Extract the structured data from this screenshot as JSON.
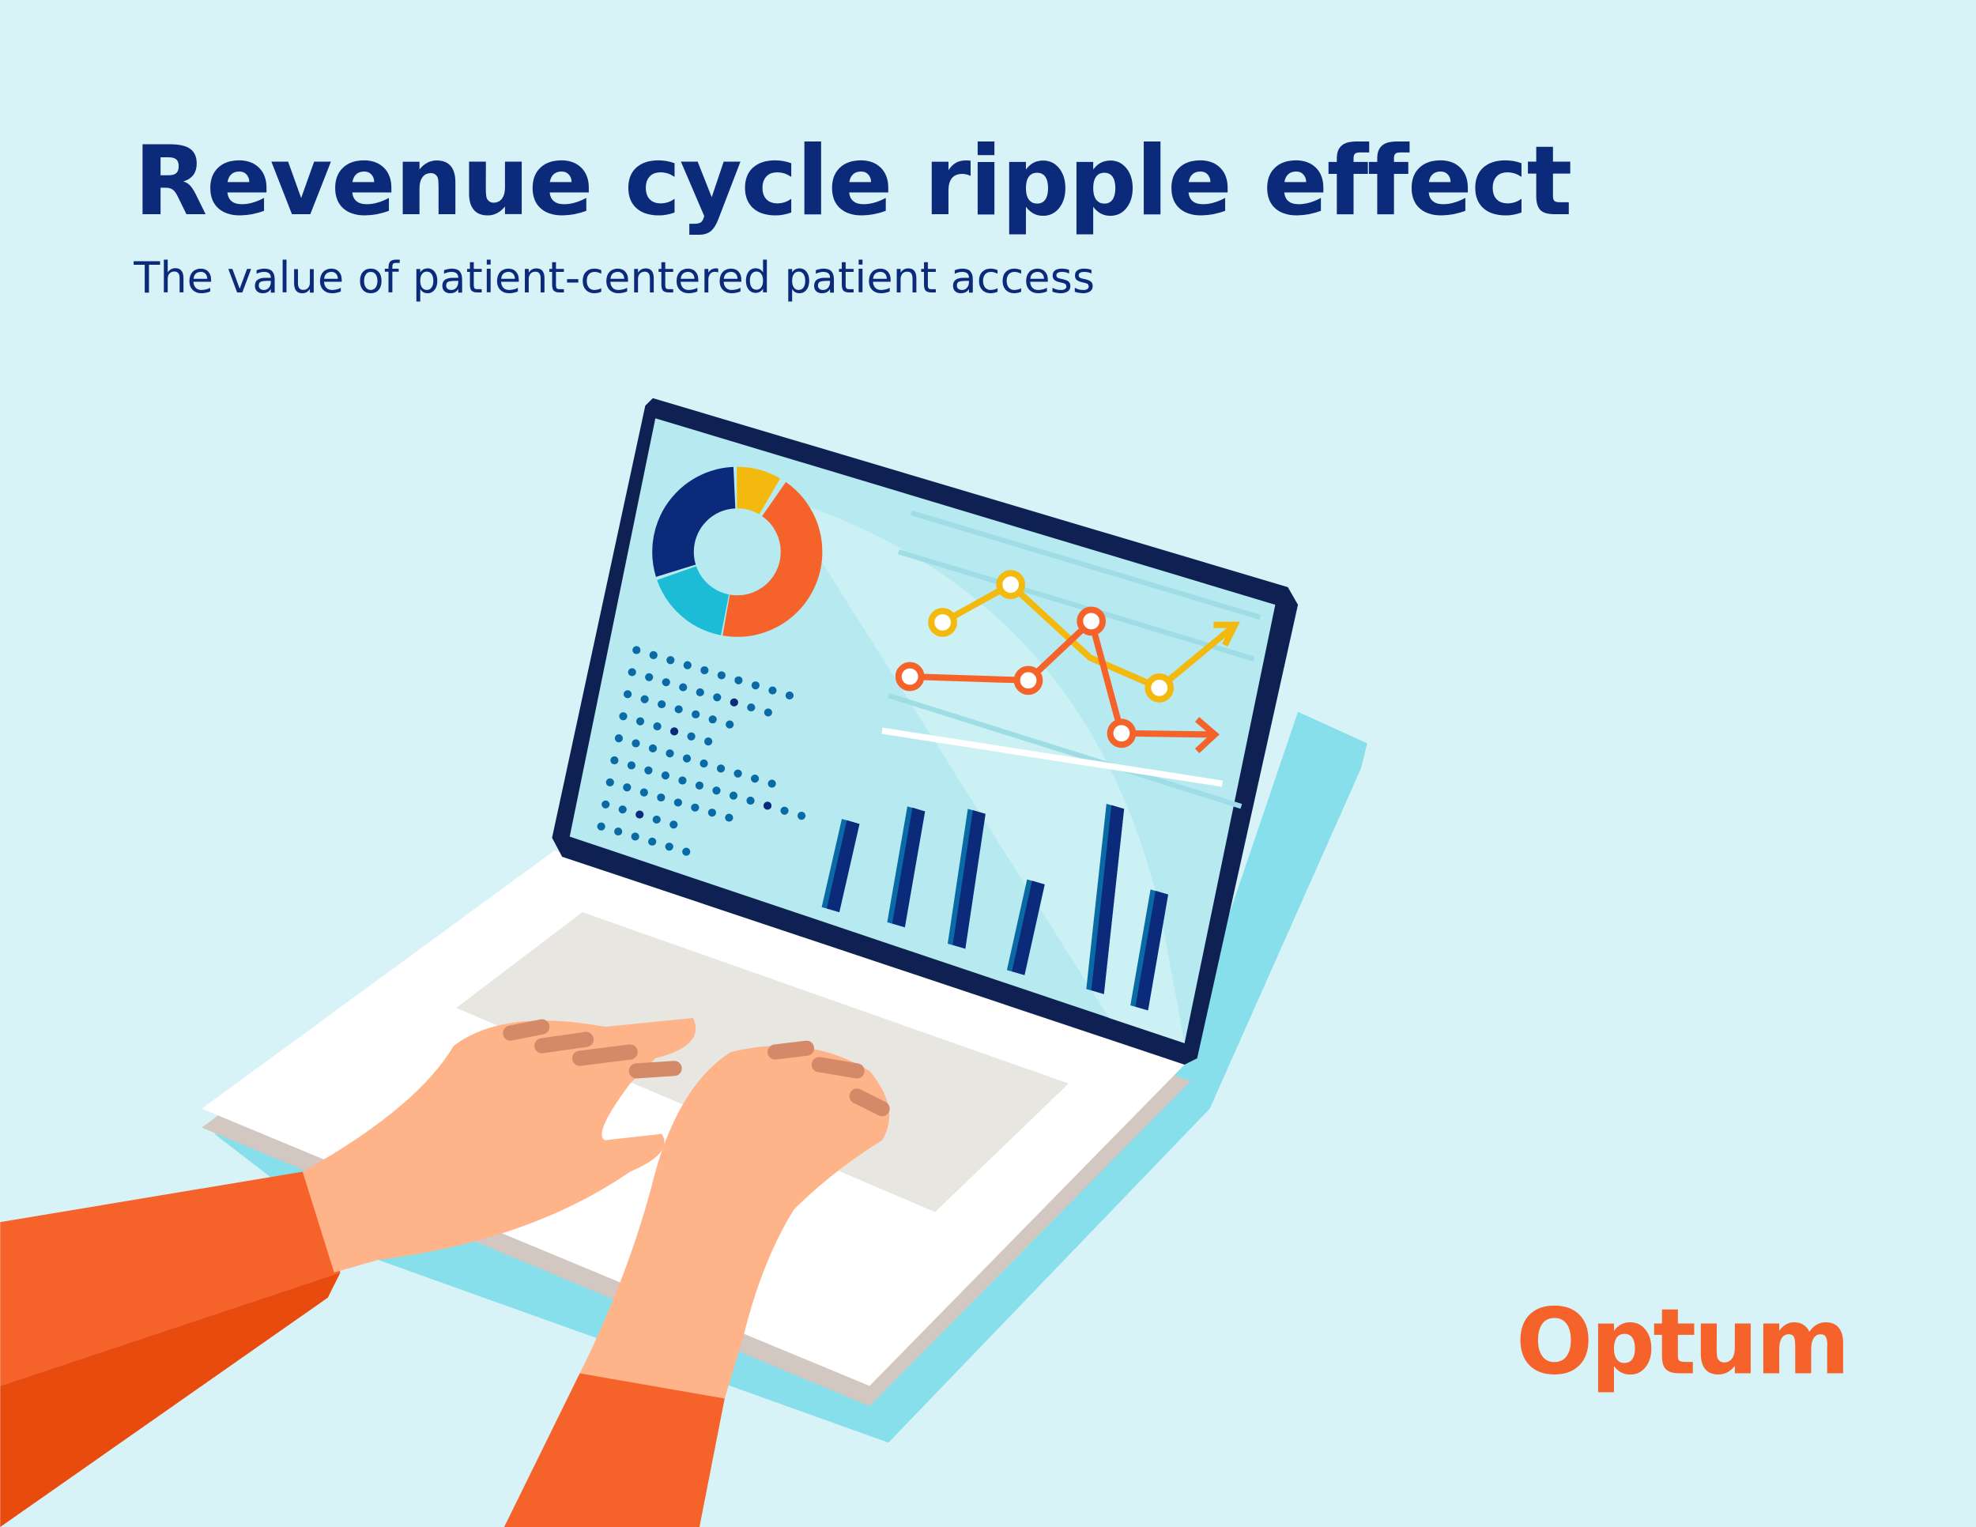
{
  "header": {
    "title": "Revenue cycle ripple effect",
    "subtitle": "The value of patient-centered patient access"
  },
  "logo": {
    "text": "Optum"
  }
}
